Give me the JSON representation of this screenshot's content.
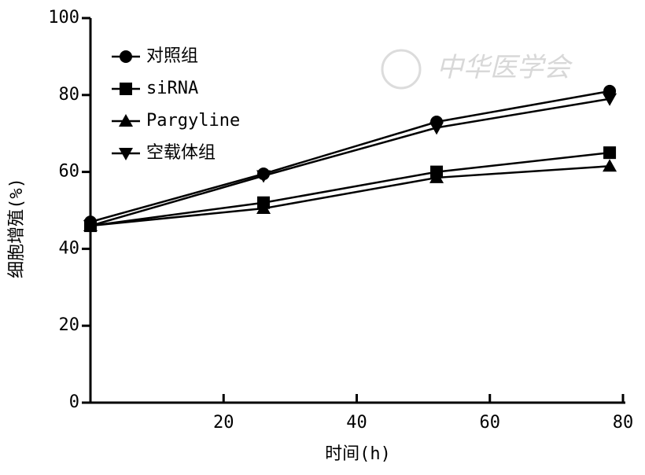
{
  "chart_data": {
    "type": "line",
    "x_label": "时间(h)",
    "y_label": "细胞增殖(%)",
    "watermark": "中华医学会",
    "x": [
      0,
      26,
      52,
      78
    ],
    "series": [
      {
        "name": "对照组",
        "color": "#000000",
        "marker": "circle",
        "values": [
          47,
          59.5,
          73,
          81
        ]
      },
      {
        "name": "siRNA",
        "color": "#000000",
        "marker": "square",
        "values": [
          46,
          52,
          60,
          65
        ]
      },
      {
        "name": "Pargyline",
        "color": "#000000",
        "marker": "triangle-up",
        "values": [
          46,
          50.5,
          58.5,
          61.5
        ]
      },
      {
        "name": "空载体组",
        "color": "#000000",
        "marker": "triangle-down",
        "values": [
          46,
          59,
          71.5,
          79
        ]
      }
    ],
    "xlim": [
      0,
      80
    ],
    "ylim": [
      0,
      100
    ],
    "xticks": [
      20,
      40,
      60,
      80
    ],
    "yticks": [
      0,
      20,
      40,
      60,
      80,
      100
    ],
    "legend": "upper-left"
  }
}
